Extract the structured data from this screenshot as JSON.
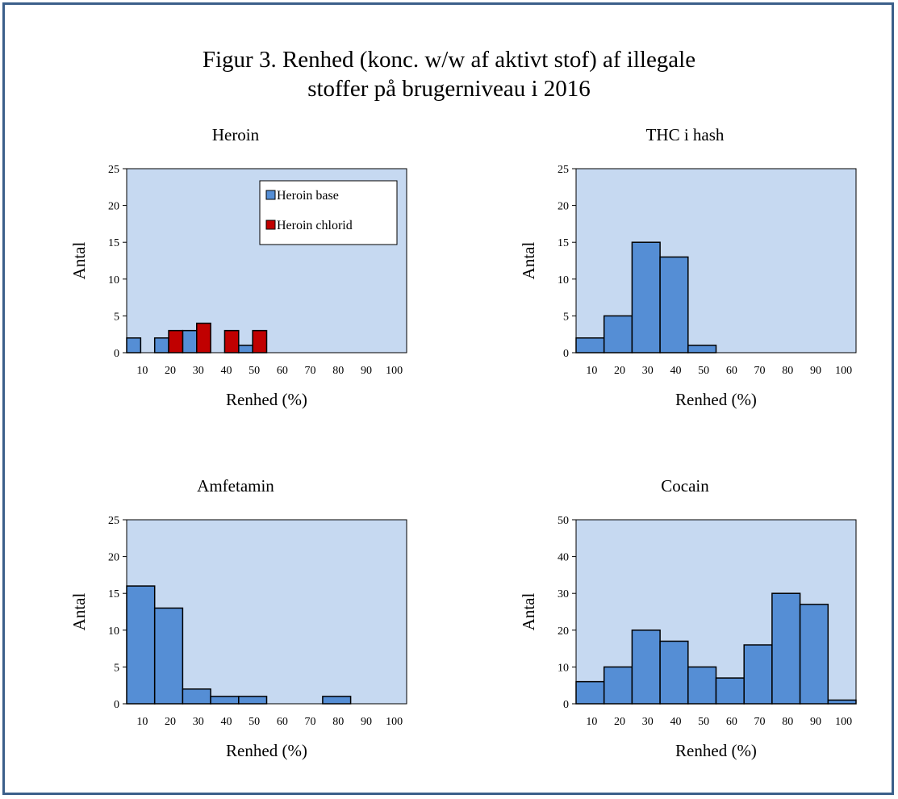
{
  "figure": {
    "title_line1": "Figur 3. Renhed (konc. w/w af aktivt stof) af illegale",
    "title_line2": "stoffer på brugerniveau i 2016"
  },
  "colors": {
    "plot_bg": "#c6d9f1",
    "bar_blue": "#558ed5",
    "bar_red": "#c00000",
    "frame": "#3b5f8a"
  },
  "chart_data": [
    {
      "type": "bar",
      "title": "Heroin",
      "xlabel": "Renhed (%)",
      "ylabel": "Antal",
      "ylim": [
        0,
        25
      ],
      "yticks": [
        "0",
        "5",
        "10",
        "15",
        "20",
        "25"
      ],
      "categories": [
        "10",
        "20",
        "30",
        "40",
        "50",
        "60",
        "70",
        "80",
        "90",
        "100"
      ],
      "legend": "top-right",
      "series": [
        {
          "name": "Heroin base",
          "color": "#558ed5",
          "values": [
            2,
            2,
            3,
            0,
            1,
            0,
            0,
            0,
            0,
            0
          ]
        },
        {
          "name": "Heroin chlorid",
          "color": "#c00000",
          "values": [
            0,
            3,
            4,
            3,
            3,
            0,
            0,
            0,
            0,
            0
          ]
        }
      ]
    },
    {
      "type": "bar",
      "title": "THC i hash",
      "xlabel": "Renhed (%)",
      "ylabel": "Antal",
      "ylim": [
        0,
        25
      ],
      "yticks": [
        "0",
        "5",
        "10",
        "15",
        "20",
        "25"
      ],
      "categories": [
        "10",
        "20",
        "30",
        "40",
        "50",
        "60",
        "70",
        "80",
        "90",
        "100"
      ],
      "series": [
        {
          "color": "#558ed5",
          "values": [
            2,
            5,
            15,
            13,
            1,
            0,
            0,
            0,
            0,
            0
          ]
        }
      ]
    },
    {
      "type": "bar",
      "title": "Amfetamin",
      "xlabel": "Renhed (%)",
      "ylabel": "Antal",
      "ylim": [
        0,
        25
      ],
      "yticks": [
        "0",
        "5",
        "10",
        "15",
        "20",
        "25"
      ],
      "categories": [
        "10",
        "20",
        "30",
        "40",
        "50",
        "60",
        "70",
        "80",
        "90",
        "100"
      ],
      "series": [
        {
          "color": "#558ed5",
          "values": [
            16,
            13,
            2,
            1,
            1,
            0,
            0,
            1,
            0,
            0
          ]
        }
      ]
    },
    {
      "type": "bar",
      "title": "Cocain",
      "xlabel": "Renhed (%)",
      "ylabel": "Antal",
      "ylim": [
        0,
        50
      ],
      "yticks": [
        "0",
        "10",
        "20",
        "30",
        "40",
        "50"
      ],
      "categories": [
        "10",
        "20",
        "30",
        "40",
        "50",
        "60",
        "70",
        "80",
        "90",
        "100"
      ],
      "series": [
        {
          "color": "#558ed5",
          "values": [
            6,
            10,
            20,
            17,
            10,
            7,
            16,
            30,
            27,
            1
          ]
        }
      ]
    }
  ]
}
